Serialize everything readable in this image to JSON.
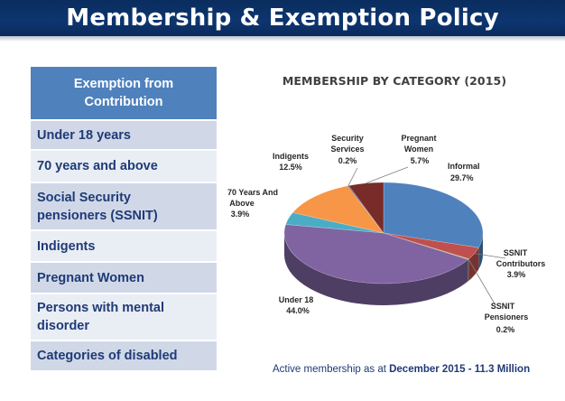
{
  "header": {
    "title": "Membership & Exemption Policy"
  },
  "exemptions": {
    "heading_line1": "Exemption from",
    "heading_line2": "Contribution",
    "items": [
      {
        "line1": "Under 18 years",
        "line2": ""
      },
      {
        "line1": "70 years and above",
        "line2": ""
      },
      {
        "line1": "Social Security",
        "line2": "pensioners (SSNIT)"
      },
      {
        "line1": "Indigents",
        "line2": ""
      },
      {
        "line1": "Pregnant Women",
        "line2": ""
      },
      {
        "line1": "Persons with mental",
        "line2": "disorder"
      },
      {
        "line1": "Categories of disabled",
        "line2": ""
      }
    ]
  },
  "chart_data": {
    "type": "pie",
    "title": "MEMBERSHIP BY CATEGORY (2015)",
    "slices": [
      {
        "name": "Informal",
        "value": 29.7,
        "label": "29.7%",
        "color": "#4f81bd"
      },
      {
        "name": "SSNIT Contributors",
        "value": 3.9,
        "label": "3.9%",
        "color": "#c0504d"
      },
      {
        "name": "SSNIT Pensioners",
        "value": 0.2,
        "label": "0.2%",
        "color": "#9bbb59"
      },
      {
        "name": "Under 18",
        "value": 44.0,
        "label": "44.0%",
        "color": "#8064a2"
      },
      {
        "name": "70 Years And Above",
        "value": 3.9,
        "label": "3.9%",
        "color": "#4bacc6"
      },
      {
        "name": "Indigents",
        "value": 12.5,
        "label": "12.5%",
        "color": "#f79646"
      },
      {
        "name": "Security Services",
        "value": 0.2,
        "label": "0.2%",
        "color": "#2c4d75"
      },
      {
        "name": "Pregnant Women",
        "value": 5.7,
        "label": "5.7%",
        "color": "#772c2a"
      }
    ]
  },
  "footer": {
    "prefix": "Active membership as at ",
    "date": "December 2015",
    "separator": " - ",
    "total": "11.3 Million"
  }
}
